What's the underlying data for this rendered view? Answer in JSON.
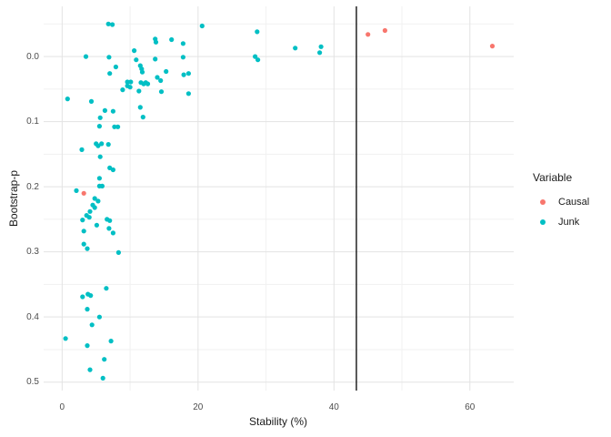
{
  "figure": {
    "background": "#FFFFFF"
  },
  "colors": {
    "grid_major": "#E3E3E3",
    "grid_minor": "#F1F1F1",
    "tick_label": "#4D4D4D",
    "axis_title": "#1A1A1A",
    "vline": "#000000",
    "causal": "#F8766D",
    "junk": "#00BFC4"
  },
  "chart_data": {
    "type": "scatter",
    "title": "",
    "xlabel": "Stability (%)",
    "ylabel": "Bootstrap-p",
    "grid": true,
    "y_axis_reversed": true,
    "xlim": [
      -2.72,
      66.45
    ],
    "ylim": [
      -0.077,
      0.513
    ],
    "x_ticks": [
      {
        "value": 0,
        "label": "0"
      },
      {
        "value": 20,
        "label": "20"
      },
      {
        "value": 40,
        "label": "40"
      },
      {
        "value": 60,
        "label": "60"
      }
    ],
    "x_minor_ticks": [
      10,
      30,
      50
    ],
    "y_ticks": [
      {
        "value": 0.0,
        "label": "0.0"
      },
      {
        "value": 0.1,
        "label": "0.1"
      },
      {
        "value": 0.2,
        "label": "0.2"
      },
      {
        "value": 0.3,
        "label": "0.3"
      },
      {
        "value": 0.4,
        "label": "0.4"
      },
      {
        "value": 0.5,
        "label": "0.5"
      }
    ],
    "y_minor_ticks": [
      -0.05,
      0.05,
      0.15,
      0.25,
      0.35,
      0.45
    ],
    "vline": {
      "x": 43.3,
      "color": "#000000"
    },
    "legend": {
      "title": "Variable",
      "position": "right",
      "entries": [
        {
          "label": "Causal",
          "color": "#F8766D"
        },
        {
          "label": "Junk",
          "color": "#00BFC4"
        }
      ]
    },
    "series": [
      {
        "name": "Junk",
        "color": "#00BFC4",
        "points": [
          [
            6.8,
            -0.05
          ],
          [
            7.4,
            -0.049
          ],
          [
            20.6,
            -0.047
          ],
          [
            28.7,
            -0.038
          ],
          [
            13.7,
            -0.027
          ],
          [
            13.8,
            -0.022
          ],
          [
            16.1,
            -0.026
          ],
          [
            17.8,
            -0.02
          ],
          [
            34.3,
            -0.013
          ],
          [
            38.1,
            -0.015
          ],
          [
            37.9,
            -0.006
          ],
          [
            10.6,
            -0.009
          ],
          [
            3.5,
            0.0
          ],
          [
            6.9,
            0.001
          ],
          [
            10.9,
            0.005
          ],
          [
            13.7,
            0.004
          ],
          [
            17.8,
            0.001
          ],
          [
            28.4,
            0.0
          ],
          [
            28.8,
            0.005
          ],
          [
            7.9,
            0.016
          ],
          [
            11.5,
            0.014
          ],
          [
            11.7,
            0.019
          ],
          [
            11.8,
            0.024
          ],
          [
            15.3,
            0.023
          ],
          [
            7.0,
            0.026
          ],
          [
            14.0,
            0.032
          ],
          [
            14.5,
            0.037
          ],
          [
            17.9,
            0.028
          ],
          [
            18.6,
            0.026
          ],
          [
            9.6,
            0.039
          ],
          [
            10.1,
            0.039
          ],
          [
            9.6,
            0.045
          ],
          [
            10.0,
            0.047
          ],
          [
            11.6,
            0.04
          ],
          [
            12.0,
            0.042
          ],
          [
            12.3,
            0.04
          ],
          [
            12.6,
            0.042
          ],
          [
            8.9,
            0.051
          ],
          [
            11.3,
            0.053
          ],
          [
            14.6,
            0.054
          ],
          [
            18.6,
            0.057
          ],
          [
            0.8,
            0.065
          ],
          [
            4.3,
            0.069
          ],
          [
            6.3,
            0.083
          ],
          [
            7.5,
            0.084
          ],
          [
            11.5,
            0.078
          ],
          [
            11.9,
            0.093
          ],
          [
            5.6,
            0.094
          ],
          [
            5.5,
            0.107
          ],
          [
            7.7,
            0.108
          ],
          [
            8.2,
            0.108
          ],
          [
            5.0,
            0.134
          ],
          [
            5.3,
            0.137
          ],
          [
            5.8,
            0.134
          ],
          [
            6.8,
            0.135
          ],
          [
            2.9,
            0.143
          ],
          [
            5.6,
            0.154
          ],
          [
            7.0,
            0.171
          ],
          [
            7.5,
            0.174
          ],
          [
            5.5,
            0.187
          ],
          [
            5.5,
            0.199
          ],
          [
            5.9,
            0.199
          ],
          [
            2.1,
            0.206
          ],
          [
            4.8,
            0.218
          ],
          [
            5.3,
            0.222
          ],
          [
            4.5,
            0.228
          ],
          [
            4.8,
            0.232
          ],
          [
            4.1,
            0.238
          ],
          [
            3.6,
            0.244
          ],
          [
            4.0,
            0.247
          ],
          [
            3.0,
            0.251
          ],
          [
            6.6,
            0.25
          ],
          [
            7.0,
            0.252
          ],
          [
            5.1,
            0.259
          ],
          [
            6.9,
            0.264
          ],
          [
            3.2,
            0.268
          ],
          [
            7.5,
            0.271
          ],
          [
            3.2,
            0.288
          ],
          [
            3.7,
            0.295
          ],
          [
            8.3,
            0.301
          ],
          [
            6.5,
            0.356
          ],
          [
            3.0,
            0.369
          ],
          [
            3.8,
            0.365
          ],
          [
            4.2,
            0.367
          ],
          [
            3.7,
            0.388
          ],
          [
            5.5,
            0.4
          ],
          [
            4.4,
            0.412
          ],
          [
            0.5,
            0.433
          ],
          [
            3.7,
            0.444
          ],
          [
            7.2,
            0.437
          ],
          [
            6.2,
            0.465
          ],
          [
            4.1,
            0.481
          ],
          [
            6.0,
            0.494
          ]
        ]
      },
      {
        "name": "Causal",
        "color": "#F8766D",
        "points": [
          [
            3.2,
            0.21
          ],
          [
            45.0,
            -0.034
          ],
          [
            47.5,
            -0.04
          ],
          [
            63.3,
            -0.016
          ]
        ]
      }
    ]
  }
}
